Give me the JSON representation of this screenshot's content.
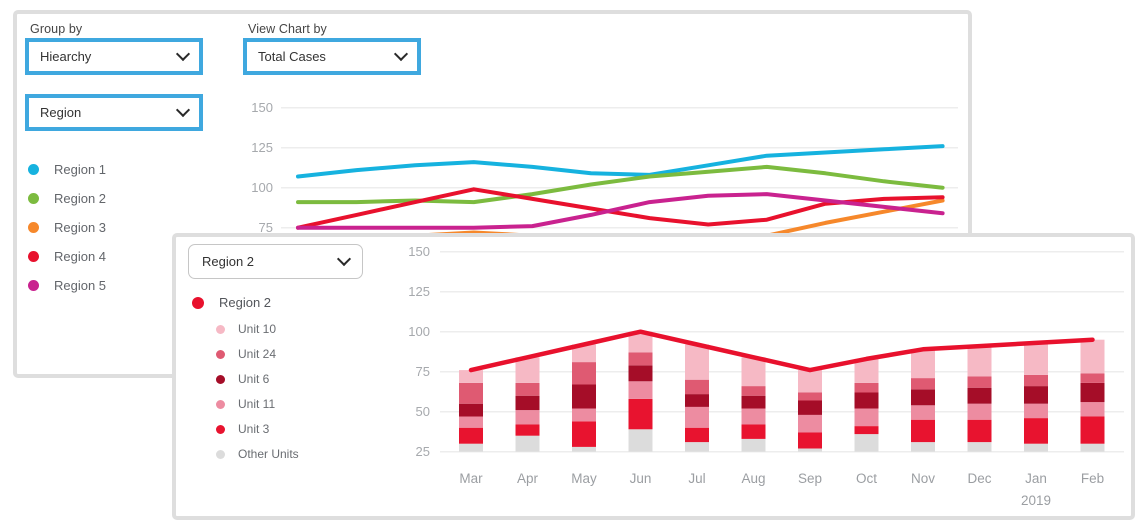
{
  "overview_panel": {
    "group_by": {
      "label": "Group by",
      "value": "Hiearchy"
    },
    "view_chart_by": {
      "label": "View Chart by",
      "value": "Total Cases"
    },
    "hierarchy_level": {
      "value": "Region"
    },
    "legend": [
      {
        "label": "Region 1",
        "color": "#16b2df"
      },
      {
        "label": "Region 2",
        "color": "#7cbb3f"
      },
      {
        "label": "Region 3",
        "color": "#f6882b"
      },
      {
        "label": "Region 4",
        "color": "#e8112d"
      },
      {
        "label": "Region 5",
        "color": "#c9228f"
      }
    ]
  },
  "detail_panel": {
    "region_select": {
      "value": "Region 2"
    },
    "legend_parent": {
      "label": "Region 2",
      "color": "#e8112d"
    },
    "legend_units": [
      {
        "label": "Unit 10",
        "color": "#f6b9c5"
      },
      {
        "label": "Unit 24",
        "color": "#df5a72"
      },
      {
        "label": "Unit 6",
        "color": "#a50d28"
      },
      {
        "label": "Unit 11",
        "color": "#ed8ca1"
      },
      {
        "label": "Unit 3",
        "color": "#e8132f"
      },
      {
        "label": "Other Units",
        "color": "#dcdcdc"
      }
    ]
  },
  "chart_data": [
    {
      "id": "overview-lines",
      "type": "line",
      "title": "",
      "yticks": [
        150,
        125,
        100,
        75
      ],
      "ylim_visible": [
        72,
        155
      ],
      "x_tick_labels_visible": false,
      "grid": true,
      "legend_position": "left",
      "series": [
        {
          "name": "Region 1",
          "color": "#16b2df",
          "values": [
            107,
            111,
            114,
            116,
            113,
            109,
            108,
            114,
            120,
            122,
            124,
            126
          ]
        },
        {
          "name": "Region 2",
          "color": "#7cbb3f",
          "values": [
            91,
            91,
            92,
            91,
            96,
            102,
            107,
            110,
            113,
            109,
            104,
            100
          ]
        },
        {
          "name": "Region 3",
          "color": "#f6882b",
          "values": [
            65,
            67,
            70,
            72,
            70,
            68,
            66,
            68,
            70,
            78,
            85,
            92
          ]
        },
        {
          "name": "Region 4",
          "color": "#e8112d",
          "values": [
            75,
            83,
            91,
            99,
            93,
            87,
            81,
            77,
            80,
            90,
            93,
            94
          ]
        },
        {
          "name": "Region 5",
          "color": "#c9228f",
          "values": [
            75,
            75,
            75,
            75,
            76,
            83,
            91,
            95,
            96,
            92,
            88,
            84
          ]
        }
      ]
    },
    {
      "id": "detail-combo",
      "type": "line+stacked-bar",
      "title": "",
      "categories": [
        "Mar",
        "Apr",
        "May",
        "Jun",
        "Jul",
        "Aug",
        "Sep",
        "Oct",
        "Nov",
        "Dec",
        "Jan",
        "Feb"
      ],
      "year_label": "2019",
      "year_under_category": "Jan",
      "yticks": [
        150,
        125,
        100,
        75,
        50,
        25
      ],
      "bar_baseline": 25,
      "grid": true,
      "legend_position": "left",
      "line_series": {
        "name": "Region 2",
        "color": "#e8112d",
        "values": [
          76,
          84,
          92,
          100,
          92,
          84,
          76,
          83,
          89,
          91,
          93,
          95
        ]
      },
      "bar_series": [
        {
          "name": "Other Units",
          "color": "#dcdcdc",
          "values": [
            5,
            10,
            3,
            14,
            6,
            8,
            2,
            11,
            6,
            6,
            5,
            5
          ]
        },
        {
          "name": "Unit 3",
          "color": "#e8132f",
          "values": [
            10,
            7,
            16,
            19,
            9,
            9,
            10,
            5,
            14,
            14,
            16,
            17
          ]
        },
        {
          "name": "Unit 11",
          "color": "#ed8ca1",
          "values": [
            7,
            9,
            8,
            11,
            13,
            10,
            11,
            11,
            9,
            10,
            9,
            9
          ]
        },
        {
          "name": "Unit 6",
          "color": "#a50d28",
          "values": [
            8,
            9,
            15,
            10,
            8,
            8,
            9,
            10,
            10,
            10,
            11,
            12
          ]
        },
        {
          "name": "Unit 24",
          "color": "#df5a72",
          "values": [
            13,
            8,
            14,
            8,
            9,
            6,
            5,
            6,
            7,
            7,
            7,
            6
          ]
        },
        {
          "name": "Unit 10",
          "color": "#f6b9c5",
          "values": [
            8,
            16,
            11,
            13,
            22,
            18,
            14,
            15,
            18,
            19,
            20,
            21
          ]
        }
      ]
    }
  ],
  "ui_colors": {
    "dropdown_highlight": "#3fa8df",
    "panel_border": "#dedede",
    "gridline": "#ededed",
    "axis_text": "#a6a9ad",
    "label_text": "#454545"
  }
}
